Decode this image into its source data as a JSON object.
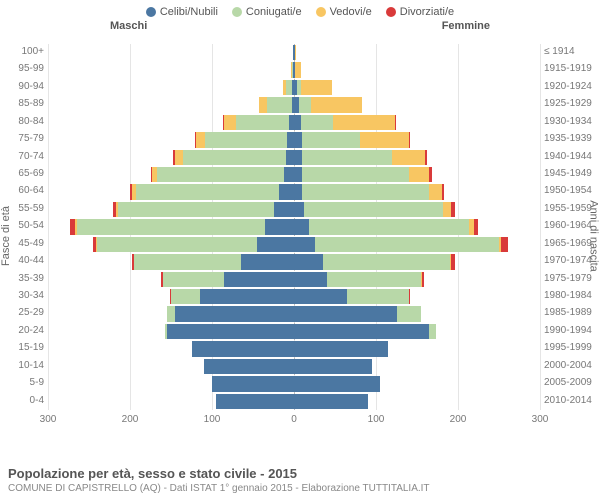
{
  "legend": [
    {
      "label": "Celibi/Nubili",
      "color": "#4b77a2"
    },
    {
      "label": "Coniugati/e",
      "color": "#b8d8a8"
    },
    {
      "label": "Vedovi/e",
      "color": "#f8c662"
    },
    {
      "label": "Divorziati/e",
      "color": "#d93a3a"
    }
  ],
  "headers": {
    "male": "Maschi",
    "female": "Femmine"
  },
  "axis": {
    "left_label": "Fasce di età",
    "right_label": "Anni di nascita",
    "x_max": 300,
    "x_ticks": [
      300,
      200,
      100,
      0,
      100,
      200,
      300
    ]
  },
  "colors": {
    "grid": "#e5e5e5",
    "center": "#bbb",
    "bg": "#ffffff",
    "tick_text": "#777"
  },
  "footer": {
    "title": "Popolazione per età, sesso e stato civile - 2015",
    "subtitle": "COMUNE DI CAPISTRELLO (AQ) - Dati ISTAT 1° gennaio 2015 - Elaborazione TUTTITALIA.IT"
  },
  "rows": [
    {
      "age": "100+",
      "birth": "≤ 1914",
      "m": {
        "c": 1,
        "m": 0,
        "w": 0,
        "d": 0
      },
      "f": {
        "c": 1,
        "m": 0,
        "w": 1,
        "d": 0
      }
    },
    {
      "age": "95-99",
      "birth": "1915-1919",
      "m": {
        "c": 1,
        "m": 1,
        "w": 2,
        "d": 0
      },
      "f": {
        "c": 1,
        "m": 0,
        "w": 8,
        "d": 0
      }
    },
    {
      "age": "90-94",
      "birth": "1920-1924",
      "m": {
        "c": 2,
        "m": 8,
        "w": 4,
        "d": 0
      },
      "f": {
        "c": 4,
        "m": 4,
        "w": 38,
        "d": 0
      }
    },
    {
      "age": "85-89",
      "birth": "1925-1929",
      "m": {
        "c": 3,
        "m": 30,
        "w": 10,
        "d": 0
      },
      "f": {
        "c": 6,
        "m": 15,
        "w": 62,
        "d": 0
      }
    },
    {
      "age": "80-84",
      "birth": "1930-1934",
      "m": {
        "c": 6,
        "m": 65,
        "w": 15,
        "d": 1
      },
      "f": {
        "c": 8,
        "m": 40,
        "w": 75,
        "d": 1
      }
    },
    {
      "age": "75-79",
      "birth": "1935-1939",
      "m": {
        "c": 8,
        "m": 100,
        "w": 12,
        "d": 1
      },
      "f": {
        "c": 10,
        "m": 70,
        "w": 60,
        "d": 1
      }
    },
    {
      "age": "70-74",
      "birth": "1940-1944",
      "m": {
        "c": 10,
        "m": 125,
        "w": 10,
        "d": 3
      },
      "f": {
        "c": 10,
        "m": 110,
        "w": 40,
        "d": 2
      }
    },
    {
      "age": "65-69",
      "birth": "1945-1949",
      "m": {
        "c": 12,
        "m": 155,
        "w": 6,
        "d": 2
      },
      "f": {
        "c": 10,
        "m": 130,
        "w": 25,
        "d": 3
      }
    },
    {
      "age": "60-64",
      "birth": "1950-1954",
      "m": {
        "c": 18,
        "m": 175,
        "w": 4,
        "d": 3
      },
      "f": {
        "c": 10,
        "m": 155,
        "w": 15,
        "d": 3
      }
    },
    {
      "age": "55-59",
      "birth": "1955-1959",
      "m": {
        "c": 25,
        "m": 190,
        "w": 2,
        "d": 4
      },
      "f": {
        "c": 12,
        "m": 170,
        "w": 10,
        "d": 4
      }
    },
    {
      "age": "50-54",
      "birth": "1960-1964",
      "m": {
        "c": 35,
        "m": 230,
        "w": 2,
        "d": 6
      },
      "f": {
        "c": 18,
        "m": 195,
        "w": 6,
        "d": 6
      }
    },
    {
      "age": "45-49",
      "birth": "1965-1969",
      "m": {
        "c": 45,
        "m": 195,
        "w": 1,
        "d": 4
      },
      "f": {
        "c": 25,
        "m": 225,
        "w": 3,
        "d": 8
      }
    },
    {
      "age": "40-44",
      "birth": "1970-1974",
      "m": {
        "c": 65,
        "m": 130,
        "w": 0,
        "d": 3
      },
      "f": {
        "c": 35,
        "m": 155,
        "w": 2,
        "d": 4
      }
    },
    {
      "age": "35-39",
      "birth": "1975-1979",
      "m": {
        "c": 85,
        "m": 75,
        "w": 0,
        "d": 2
      },
      "f": {
        "c": 40,
        "m": 115,
        "w": 1,
        "d": 3
      }
    },
    {
      "age": "30-34",
      "birth": "1980-1984",
      "m": {
        "c": 115,
        "m": 35,
        "w": 0,
        "d": 1
      },
      "f": {
        "c": 65,
        "m": 75,
        "w": 0,
        "d": 1
      }
    },
    {
      "age": "25-29",
      "birth": "1985-1989",
      "m": {
        "c": 145,
        "m": 10,
        "w": 0,
        "d": 0
      },
      "f": {
        "c": 125,
        "m": 30,
        "w": 0,
        "d": 0
      }
    },
    {
      "age": "20-24",
      "birth": "1990-1994",
      "m": {
        "c": 155,
        "m": 2,
        "w": 0,
        "d": 0
      },
      "f": {
        "c": 165,
        "m": 8,
        "w": 0,
        "d": 0
      }
    },
    {
      "age": "15-19",
      "birth": "1995-1999",
      "m": {
        "c": 125,
        "m": 0,
        "w": 0,
        "d": 0
      },
      "f": {
        "c": 115,
        "m": 0,
        "w": 0,
        "d": 0
      }
    },
    {
      "age": "10-14",
      "birth": "2000-2004",
      "m": {
        "c": 110,
        "m": 0,
        "w": 0,
        "d": 0
      },
      "f": {
        "c": 95,
        "m": 0,
        "w": 0,
        "d": 0
      }
    },
    {
      "age": "5-9",
      "birth": "2005-2009",
      "m": {
        "c": 100,
        "m": 0,
        "w": 0,
        "d": 0
      },
      "f": {
        "c": 105,
        "m": 0,
        "w": 0,
        "d": 0
      }
    },
    {
      "age": "0-4",
      "birth": "2010-2014",
      "m": {
        "c": 95,
        "m": 0,
        "w": 0,
        "d": 0
      },
      "f": {
        "c": 90,
        "m": 0,
        "w": 0,
        "d": 0
      }
    }
  ]
}
